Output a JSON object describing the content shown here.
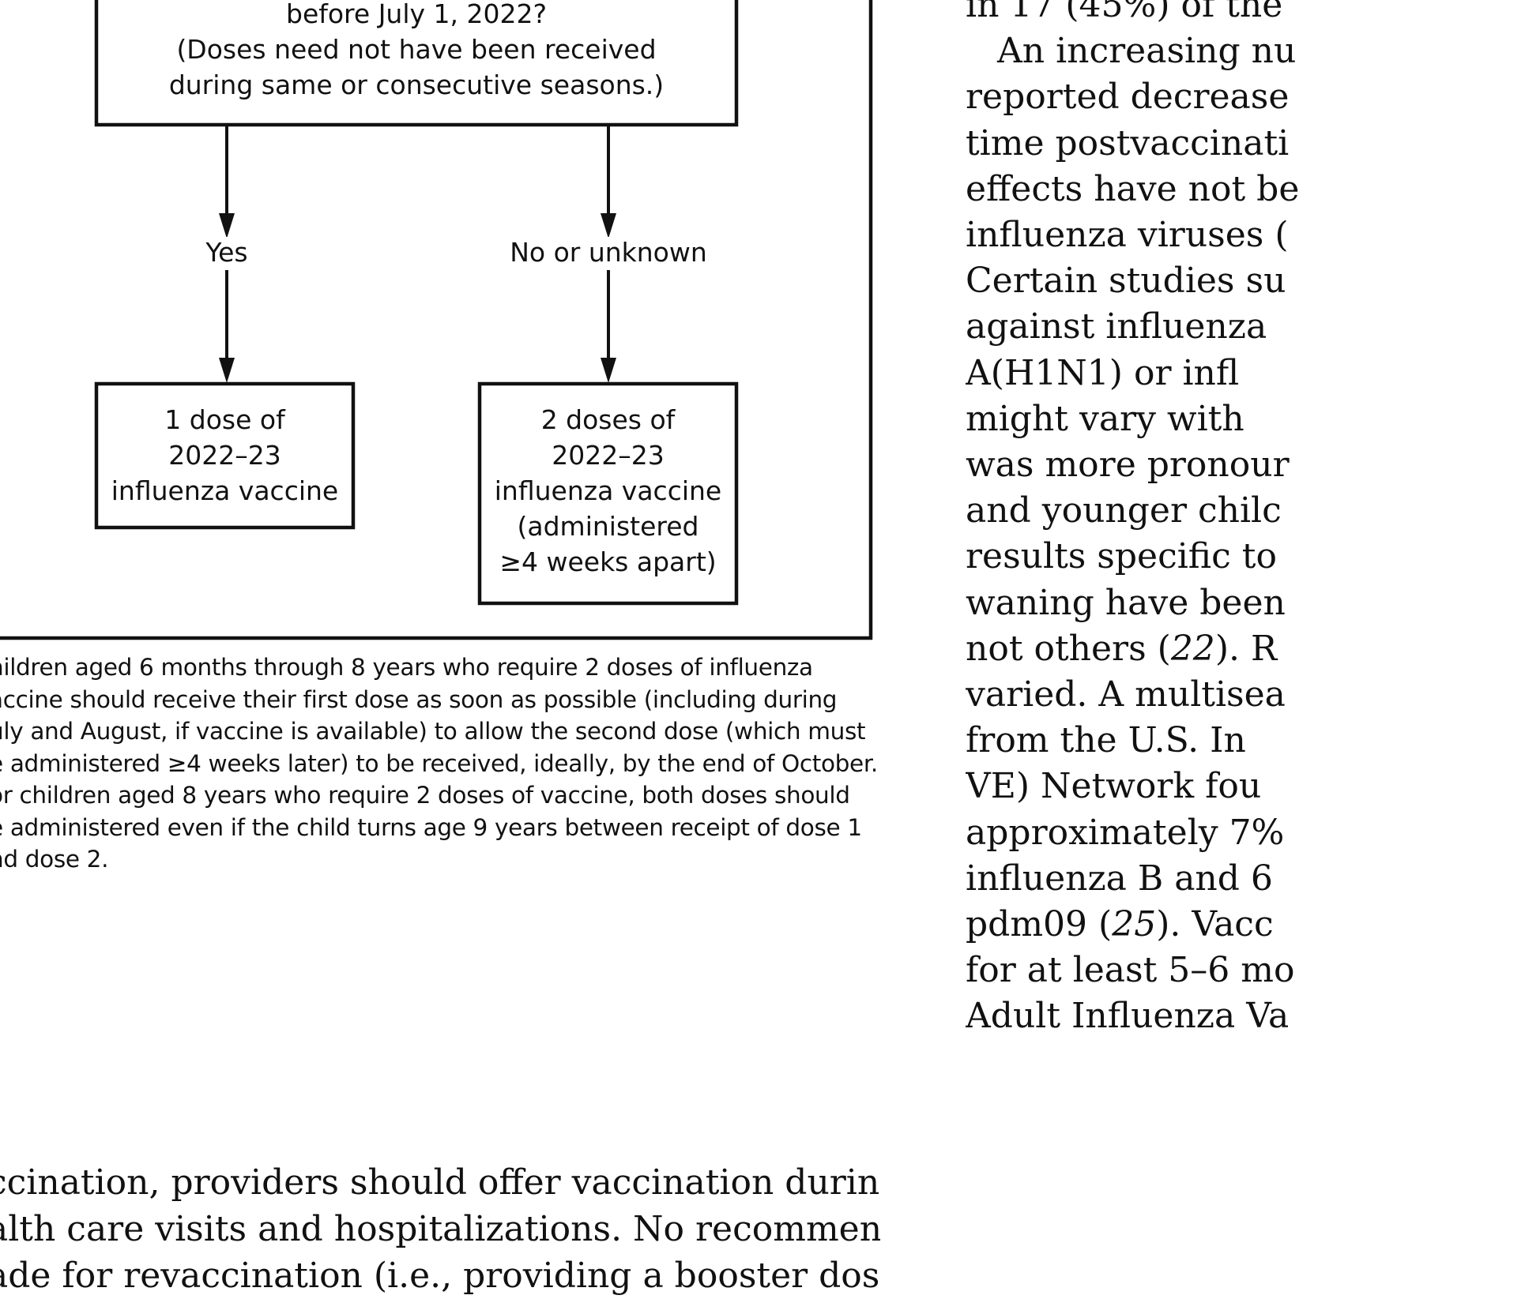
{
  "flowchart": {
    "question_tail": "before July 1, 2022?",
    "question_note_1": "(Doses need not have been received",
    "question_note_2": "during same or consecutive seasons.)",
    "yes_label": "Yes",
    "no_label": "No or unknown",
    "one_dose": [
      "1 dose of",
      "2022–23",
      "influenza vaccine"
    ],
    "two_doses": [
      "2 doses of",
      "2022–23",
      "influenza vaccine",
      "(administered",
      "≥4 weeks apart)"
    ]
  },
  "footnote_lines": [
    "hildren aged 6 months through 8 years who require 2 doses of influenza",
    "accine should receive their first dose as soon as possible (including during",
    "uly and August, if vaccine is available) to allow the second dose (which must",
    "e administered ≥4 weeks later) to be received, ideally, by the end of October.",
    "or children aged 8 years who require 2 doses of vaccine, both doses should",
    "e administered even if the child turns age 9 years between receipt of dose 1",
    "nd dose 2."
  ],
  "body_left_lines": [
    "ccination, providers should offer vaccination during routine",
    "alth care visits and hospitalizations. No recommendation is",
    "ade for revaccination (i.e., providing a booster dose) later"
  ],
  "right_column": [
    {
      "text": "in 17 (45%) of the"
    },
    {
      "text": "An increasing nu",
      "indent": true
    },
    {
      "text": "reported decrease"
    },
    {
      "text": "time postvaccinati"
    },
    {
      "text": "effects have not be"
    },
    {
      "text": "influenza viruses ("
    },
    {
      "text": "Certain studies su"
    },
    {
      "text": "against influenza"
    },
    {
      "text": "A(H1N1) or infl"
    },
    {
      "text": "might vary with"
    },
    {
      "text": "was more pronour"
    },
    {
      "text": "and younger chilc"
    },
    {
      "text": "results specific to"
    },
    {
      "text": "waning have been"
    },
    {
      "pre": "not others (",
      "ref": "22",
      "post": "). R"
    },
    {
      "text": "varied. A multisea"
    },
    {
      "text": "from the U.S. In"
    },
    {
      "text": "VE) Network fou"
    },
    {
      "text": "approximately 7%"
    },
    {
      "text": "influenza B and 6"
    },
    {
      "pre": "pdm09 (",
      "ref": "25",
      "post": "). Vacc"
    },
    {
      "text": "for at least 5–6 mo"
    },
    {
      "text": "Adult Influenza Va"
    }
  ]
}
